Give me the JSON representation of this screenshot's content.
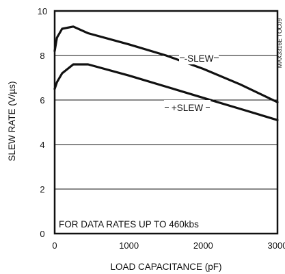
{
  "chart_data": {
    "type": "line",
    "title": "",
    "xlabel": "LOAD CAPACITANCE (pF)",
    "ylabel": "SLEW RATE (V/µs)",
    "xlim": [
      0,
      3000
    ],
    "ylim": [
      0,
      10
    ],
    "x_ticks": [
      "0",
      "1000",
      "2000",
      "3000"
    ],
    "y_ticks": [
      "0",
      "2",
      "4",
      "6",
      "8",
      "10"
    ],
    "grid": "horizontal",
    "series": [
      {
        "name": "-SLEW",
        "x": [
          0,
          30,
          100,
          250,
          450,
          1000,
          1500,
          2000,
          2500,
          3000
        ],
        "y": [
          8.2,
          8.8,
          9.2,
          9.3,
          9.0,
          8.5,
          8.0,
          7.4,
          6.7,
          5.9
        ]
      },
      {
        "name": "+SLEW",
        "x": [
          0,
          30,
          100,
          250,
          450,
          1000,
          1500,
          2000,
          2500,
          3000
        ],
        "y": [
          6.5,
          6.8,
          7.2,
          7.6,
          7.6,
          7.1,
          6.6,
          6.1,
          5.6,
          5.1
        ]
      }
    ],
    "annotations": [
      "FOR DATA RATES UP TO 460kbs"
    ],
    "chart_id": "MAX3316E TOC09"
  }
}
